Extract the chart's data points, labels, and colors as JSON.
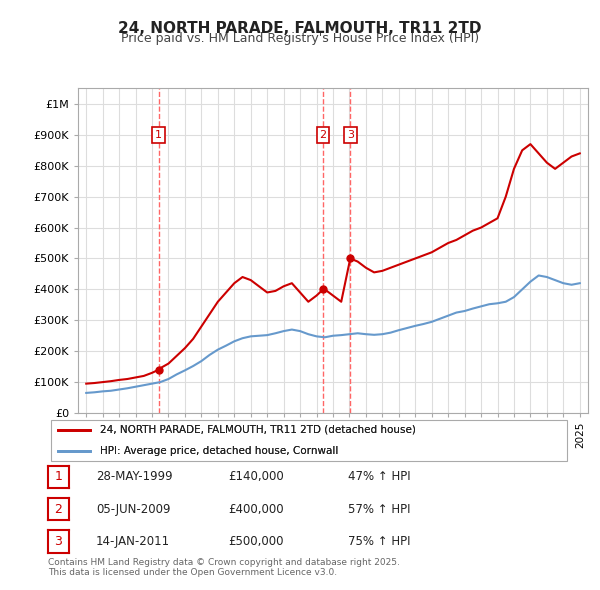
{
  "title": "24, NORTH PARADE, FALMOUTH, TR11 2TD",
  "subtitle": "Price paid vs. HM Land Registry's House Price Index (HPI)",
  "red_label": "24, NORTH PARADE, FALMOUTH, TR11 2TD (detached house)",
  "blue_label": "HPI: Average price, detached house, Cornwall",
  "footer": "Contains HM Land Registry data © Crown copyright and database right 2025.\nThis data is licensed under the Open Government Licence v3.0.",
  "transactions": [
    {
      "num": 1,
      "date": "28-MAY-1999",
      "price": "£140,000",
      "hpi": "47% ↑ HPI",
      "year": 1999.4
    },
    {
      "num": 2,
      "date": "05-JUN-2009",
      "price": "£400,000",
      "hpi": "57% ↑ HPI",
      "year": 2009.4
    },
    {
      "num": 3,
      "date": "14-JAN-2011",
      "price": "£500,000",
      "hpi": "75% ↑ HPI",
      "year": 2011.05
    }
  ],
  "red_line": {
    "x": [
      1995.0,
      1995.5,
      1996.0,
      1996.5,
      1997.0,
      1997.5,
      1998.0,
      1998.5,
      1999.0,
      1999.4,
      1999.5,
      2000.0,
      2000.5,
      2001.0,
      2001.5,
      2002.0,
      2002.5,
      2003.0,
      2003.5,
      2004.0,
      2004.5,
      2005.0,
      2005.5,
      2006.0,
      2006.5,
      2007.0,
      2007.5,
      2008.0,
      2008.5,
      2009.0,
      2009.4,
      2009.5,
      2010.0,
      2010.5,
      2011.05,
      2011.5,
      2012.0,
      2012.5,
      2013.0,
      2013.5,
      2014.0,
      2014.5,
      2015.0,
      2015.5,
      2016.0,
      2016.5,
      2017.0,
      2017.5,
      2018.0,
      2018.5,
      2019.0,
      2019.5,
      2020.0,
      2020.5,
      2021.0,
      2021.5,
      2022.0,
      2022.5,
      2023.0,
      2023.5,
      2024.0,
      2024.5,
      2025.0
    ],
    "y": [
      95000,
      97000,
      100000,
      103000,
      107000,
      110000,
      115000,
      120000,
      130000,
      140000,
      145000,
      160000,
      185000,
      210000,
      240000,
      280000,
      320000,
      360000,
      390000,
      420000,
      440000,
      430000,
      410000,
      390000,
      395000,
      410000,
      420000,
      390000,
      360000,
      380000,
      400000,
      400000,
      380000,
      360000,
      500000,
      490000,
      470000,
      455000,
      460000,
      470000,
      480000,
      490000,
      500000,
      510000,
      520000,
      535000,
      550000,
      560000,
      575000,
      590000,
      600000,
      615000,
      630000,
      700000,
      790000,
      850000,
      870000,
      840000,
      810000,
      790000,
      810000,
      830000,
      840000
    ]
  },
  "blue_line": {
    "x": [
      1995.0,
      1995.5,
      1996.0,
      1996.5,
      1997.0,
      1997.5,
      1998.0,
      1998.5,
      1999.0,
      1999.5,
      2000.0,
      2000.5,
      2001.0,
      2001.5,
      2002.0,
      2002.5,
      2003.0,
      2003.5,
      2004.0,
      2004.5,
      2005.0,
      2005.5,
      2006.0,
      2006.5,
      2007.0,
      2007.5,
      2008.0,
      2008.5,
      2009.0,
      2009.5,
      2010.0,
      2010.5,
      2011.0,
      2011.5,
      2012.0,
      2012.5,
      2013.0,
      2013.5,
      2014.0,
      2014.5,
      2015.0,
      2015.5,
      2016.0,
      2016.5,
      2017.0,
      2017.5,
      2018.0,
      2018.5,
      2019.0,
      2019.5,
      2020.0,
      2020.5,
      2021.0,
      2021.5,
      2022.0,
      2022.5,
      2023.0,
      2023.5,
      2024.0,
      2024.5,
      2025.0
    ],
    "y": [
      65000,
      67000,
      70000,
      72000,
      76000,
      80000,
      85000,
      90000,
      95000,
      100000,
      110000,
      125000,
      138000,
      152000,
      168000,
      188000,
      205000,
      218000,
      232000,
      242000,
      248000,
      250000,
      252000,
      258000,
      265000,
      270000,
      265000,
      255000,
      248000,
      245000,
      250000,
      252000,
      255000,
      258000,
      255000,
      253000,
      255000,
      260000,
      268000,
      275000,
      282000,
      288000,
      295000,
      305000,
      315000,
      325000,
      330000,
      338000,
      345000,
      352000,
      355000,
      360000,
      375000,
      400000,
      425000,
      445000,
      440000,
      430000,
      420000,
      415000,
      420000
    ]
  },
  "xlim": [
    1994.5,
    2025.5
  ],
  "ylim": [
    0,
    1050000
  ],
  "yticks": [
    0,
    100000,
    200000,
    300000,
    400000,
    500000,
    600000,
    700000,
    800000,
    900000,
    1000000
  ],
  "ytick_labels": [
    "£0",
    "£100K",
    "£200K",
    "£300K",
    "£400K",
    "£500K",
    "£600K",
    "£700K",
    "£800K",
    "£900K",
    "£1M"
  ],
  "xtick_years": [
    1995,
    1996,
    1997,
    1998,
    1999,
    2000,
    2001,
    2002,
    2003,
    2004,
    2005,
    2006,
    2007,
    2008,
    2009,
    2010,
    2011,
    2012,
    2013,
    2014,
    2015,
    2016,
    2017,
    2018,
    2019,
    2020,
    2021,
    2022,
    2023,
    2024,
    2025
  ],
  "vline_color": "#ff6666",
  "red_color": "#cc0000",
  "blue_color": "#6699cc",
  "grid_color": "#dddddd",
  "bg_color": "#ffffff"
}
